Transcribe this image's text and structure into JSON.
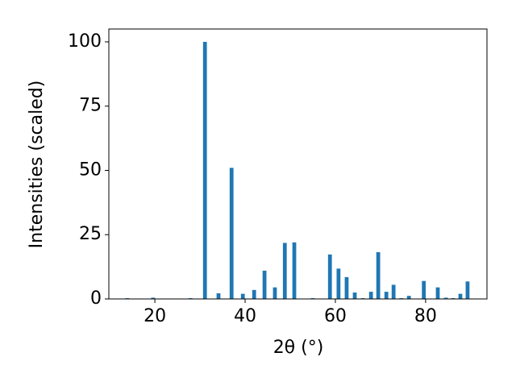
{
  "chart_data": {
    "type": "bar",
    "xlabel": "2θ (°)",
    "ylabel": "Intensities (scaled)",
    "x": [
      13.9,
      19.6,
      27.9,
      31.1,
      34.1,
      37.0,
      39.5,
      42.0,
      44.3,
      46.6,
      48.8,
      50.9,
      55.0,
      58.8,
      60.7,
      62.5,
      64.3,
      66.1,
      67.9,
      69.5,
      71.3,
      72.9,
      74.6,
      76.3,
      79.6,
      82.7,
      84.5,
      86.1,
      87.7,
      89.3
    ],
    "values": [
      0.3,
      0.5,
      0.3,
      100,
      2.2,
      51,
      2,
      3.5,
      11,
      4.5,
      21.8,
      22,
      0.3,
      17.3,
      11.8,
      8.5,
      2.5,
      0.3,
      2.8,
      18.2,
      2.8,
      5.5,
      0.3,
      1.2,
      7,
      4.5,
      0.5,
      0.3,
      2,
      6.8
    ],
    "color": "#1f77b4",
    "bar_width": 0.85,
    "xlim": [
      9.8,
      93.6
    ],
    "ylim": [
      0,
      105
    ],
    "xticks": [
      20,
      40,
      60,
      80
    ],
    "yticks": [
      0,
      25,
      50,
      75,
      100
    ],
    "grid": false
  }
}
